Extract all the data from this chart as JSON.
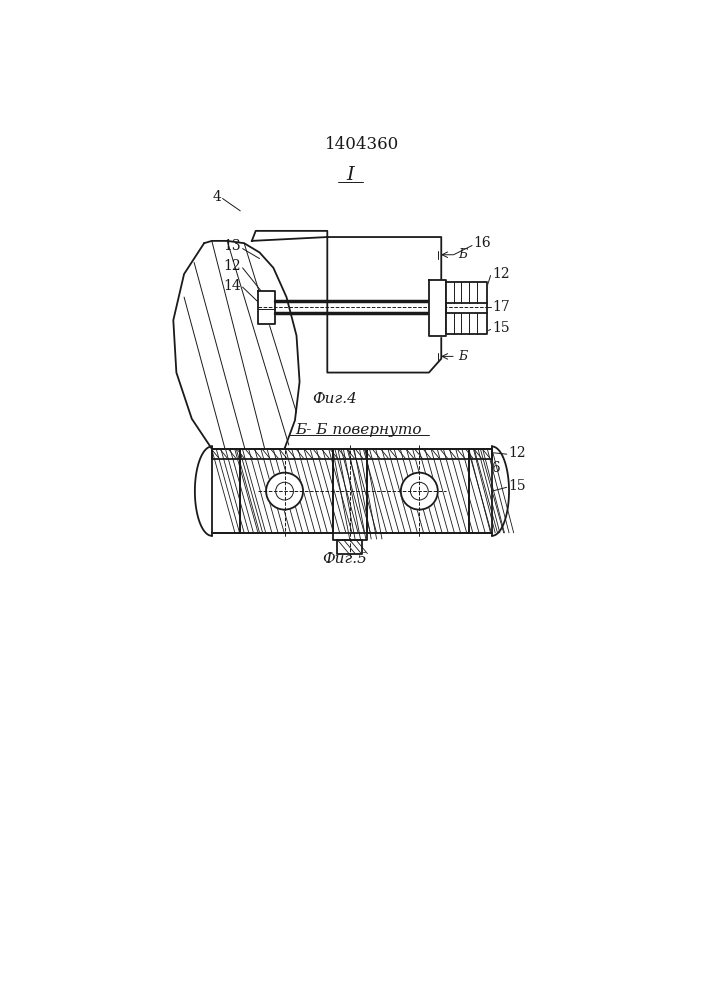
{
  "title": "1404360",
  "fig1_label": "I",
  "fig4_caption": "Фиг.4",
  "fig5_caption": "Фиг.5",
  "fig5_title": "Б- Б повернуто",
  "line_color": "#1a1a1a"
}
